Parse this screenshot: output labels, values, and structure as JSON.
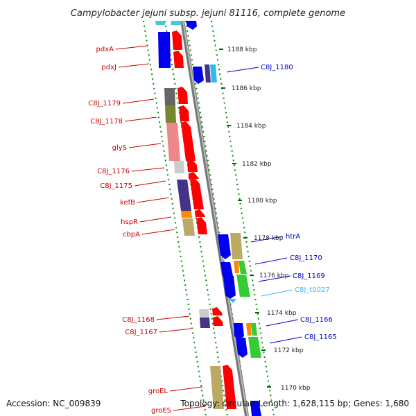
{
  "title": "Campylobacter jejuni subsp. jejuni 81116, complete genome",
  "accession_text": "Accession: NC_009839",
  "summary_text": "Topology: circular; Length: 1,628,115 bp; Genes: 1,680",
  "colors": {
    "forward": "#ff0000",
    "reverse": "#0000ee",
    "rna": "#33bbee",
    "backbone": "#888888",
    "tick": "#008800"
  },
  "kbp_labels": [
    "1188 kbp",
    "1186 kbp",
    "1184 kbp",
    "1182 kbp",
    "1180 kbp",
    "1178 kbp",
    "1176 kbp",
    "1174 kbp",
    "1172 kbp",
    "1170 kbp"
  ],
  "left_genes": [
    "pdxA",
    "pdxJ",
    "C8J_1179",
    "C8J_1178",
    "glyS",
    "C8J_1176",
    "C8J_1175",
    "kefB",
    "hspR",
    "cbpA",
    "C8J_1168",
    "C8J_1167",
    "groEL",
    "groES"
  ],
  "right_genes": [
    "C8J_1180",
    "htrA",
    "C8J_1170",
    "C8J_1169",
    "C8J_t0027",
    "C8J_1166",
    "C8J_1165"
  ]
}
